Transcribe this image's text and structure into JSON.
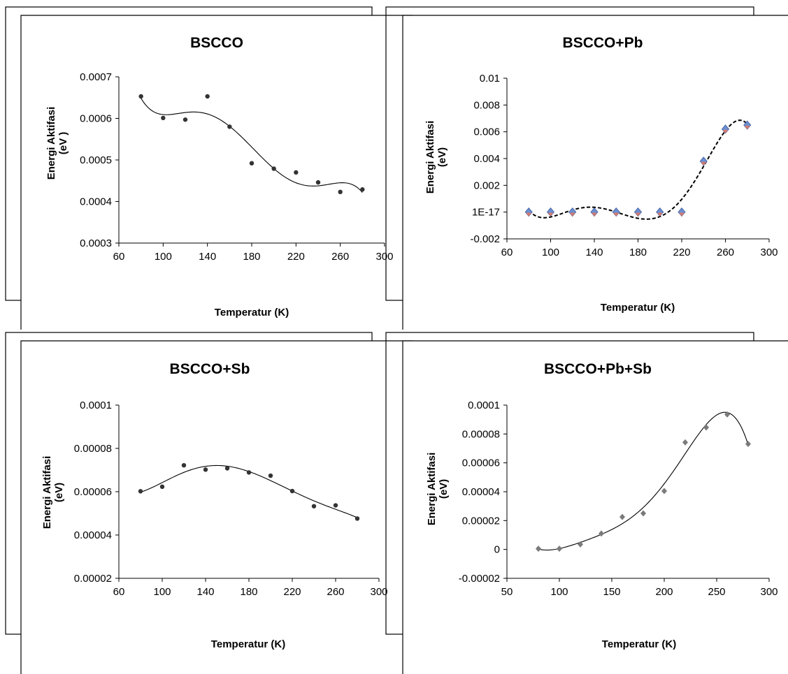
{
  "chart_data": [
    {
      "type": "scatter",
      "title": "BSCCO",
      "xlabel": "Temperatur (K)",
      "ylabel_lines": [
        "Energi Aktifasi",
        "(eV )"
      ],
      "xticks": [
        "60",
        "100",
        "140",
        "180",
        "220",
        "260",
        "300"
      ],
      "xlim": [
        60,
        300
      ],
      "yticks": [
        "0.0003",
        "0.0004",
        "0.0005",
        "0.0006",
        "0.0007"
      ],
      "ylim": [
        0.0003,
        0.0007
      ],
      "marker": "dot",
      "trendline": "polynomial",
      "x": [
        80,
        100,
        120,
        140,
        160,
        180,
        200,
        220,
        240,
        260,
        280
      ],
      "y": [
        0.000653,
        0.000601,
        0.000597,
        0.000653,
        0.00058,
        0.000492,
        0.000479,
        0.00047,
        0.000446,
        0.000423,
        0.000429
      ]
    },
    {
      "type": "scatter",
      "title": "BSCCO+Pb",
      "xlabel": "Temperatur (K)",
      "ylabel_lines": [
        "Energi  Aktifasi",
        "(eV)"
      ],
      "xticks": [
        "60",
        "100",
        "140",
        "180",
        "220",
        "260",
        "300"
      ],
      "xlim": [
        60,
        300
      ],
      "yticks": [
        "-0.002",
        "1E-17",
        "0.002",
        "0.004",
        "0.006",
        "0.008",
        "0.01"
      ],
      "ylim": [
        -0.002,
        0.01
      ],
      "marker": "diamond",
      "marker_color": "#6d8fd0",
      "trendline": "polynomial-dashed",
      "x": [
        80,
        100,
        120,
        140,
        160,
        180,
        200,
        220,
        240,
        260,
        280
      ],
      "y": [
        0,
        0,
        0,
        0,
        0,
        0,
        0,
        0,
        0.0038,
        0.0062,
        0.0065
      ]
    },
    {
      "type": "scatter",
      "title": "BSCCO+Sb",
      "xlabel": "Temperatur (K)",
      "ylabel_lines": [
        "Energi Aktifasi",
        "(eV)"
      ],
      "xticks": [
        "60",
        "100",
        "140",
        "180",
        "220",
        "260",
        "300"
      ],
      "xlim": [
        60,
        300
      ],
      "yticks": [
        "0.00002",
        "0.00004",
        "0.00006",
        "0.00008",
        "0.0001"
      ],
      "ylim": [
        2e-05,
        0.0001
      ],
      "marker": "dot",
      "trendline": "polynomial",
      "x": [
        80,
        100,
        120,
        140,
        160,
        180,
        200,
        220,
        240,
        260,
        280
      ],
      "y": [
        6.02e-05,
        6.23e-05,
        7.22e-05,
        7.02e-05,
        7.08e-05,
        6.89e-05,
        6.74e-05,
        6.03e-05,
        5.33e-05,
        5.37e-05,
        4.76e-05
      ]
    },
    {
      "type": "scatter",
      "title": "BSCCO+Pb+Sb",
      "xlabel": "Temperatur (K)",
      "ylabel_lines": [
        "Energi Aktifasi",
        "(eV)"
      ],
      "xticks": [
        "50",
        "100",
        "150",
        "200",
        "250",
        "300"
      ],
      "xlim": [
        50,
        300
      ],
      "yticks": [
        "-0.00002",
        "0",
        "0.00002",
        "0.00004",
        "0.00006",
        "0.00008",
        "0.0001"
      ],
      "ylim": [
        -2e-05,
        0.0001
      ],
      "marker": "diamond",
      "marker_color": "#7a7a7a",
      "trendline": "polynomial",
      "x": [
        80,
        100,
        120,
        140,
        160,
        180,
        200,
        220,
        240,
        260,
        280
      ],
      "y": [
        5e-07,
        5e-07,
        3.5e-06,
        1.1e-05,
        2.25e-05,
        2.5e-05,
        4.05e-05,
        7.42e-05,
        8.45e-05,
        9.35e-05,
        7.31e-05
      ]
    }
  ]
}
